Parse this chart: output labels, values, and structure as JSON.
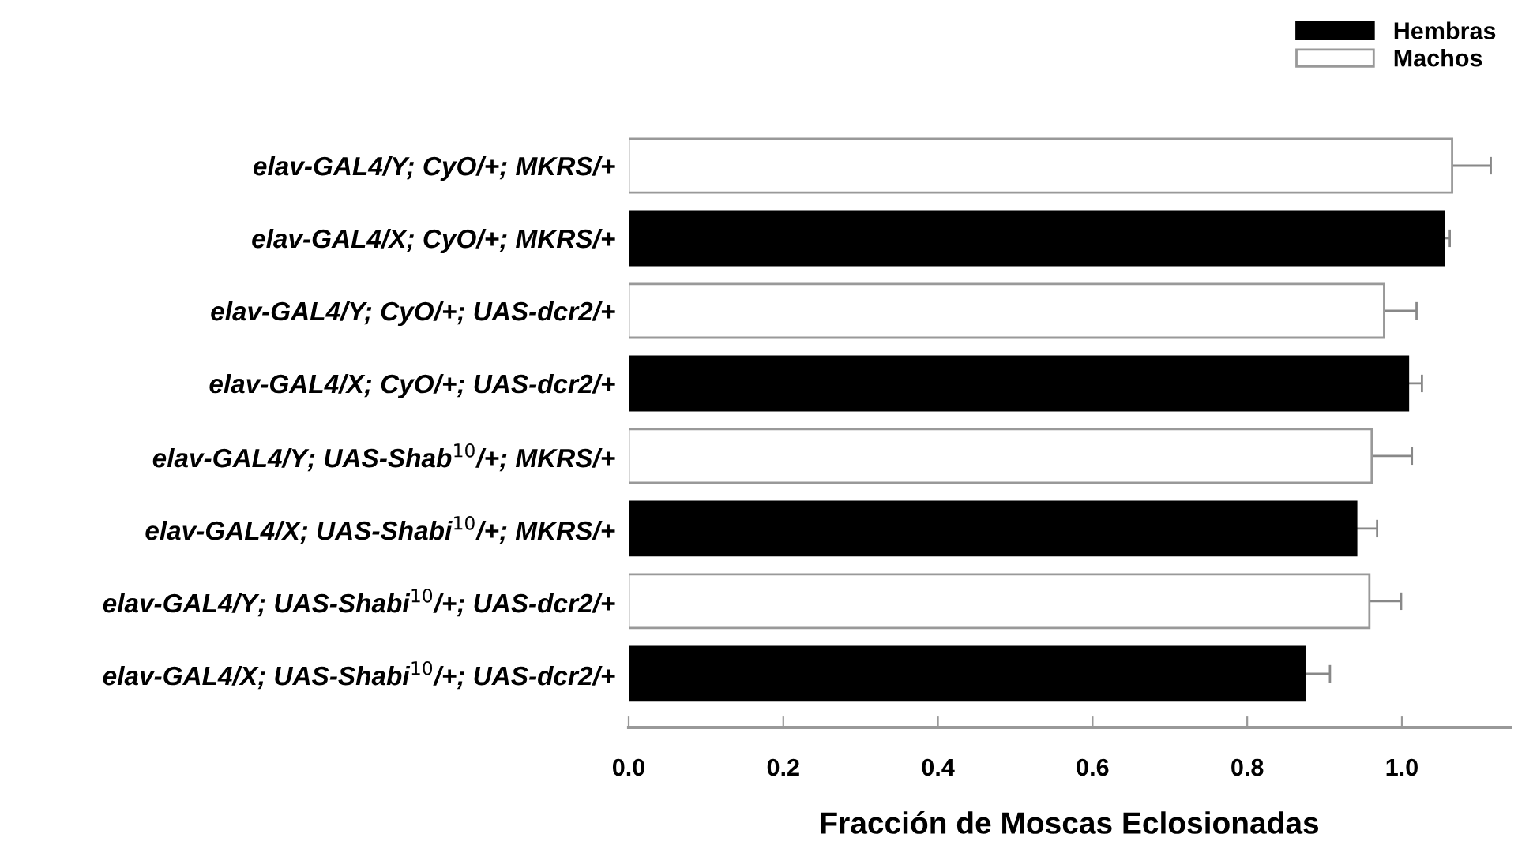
{
  "chart_data": {
    "type": "bar",
    "orientation": "horizontal",
    "xlabel": "Fracción de Moscas Eclosionadas",
    "categories": [
      "elav-GAL4/Y; CyO/+; MKRS/+",
      "elav-GAL4/X; CyO/+; MKRS/+",
      "elav-GAL4/Y; CyO/+; UAS-dcr2/+",
      "elav-GAL4/X; CyO/+; UAS-dcr2/+",
      "elav-GAL4/Y; UAS-Shab$^{10}$/+; MKRS/+",
      "elav-GAL4/X; UAS-Shabi$^{10}$/+; MKRS/+",
      "elav-GAL4/Y; UAS-Shabi$^{10}$/+; UAS-dcr2/+",
      "elav-GAL4/X; UAS-Shabi$^{10}$/+; UAS-dcr2/+"
    ],
    "series": [
      {
        "name": "Hembras",
        "color": "#000000",
        "values": [
          null,
          1.054,
          null,
          1.008,
          null,
          0.941,
          null,
          0.874
        ],
        "errors": [
          null,
          0.008,
          null,
          0.018,
          null,
          0.027,
          null,
          0.033
        ]
      },
      {
        "name": "Machos",
        "color": "#ffffff",
        "values": [
          1.065,
          null,
          0.977,
          null,
          0.961,
          null,
          0.958,
          null
        ],
        "errors": [
          0.05,
          null,
          0.042,
          null,
          0.052,
          null,
          0.041,
          null
        ]
      }
    ],
    "xlim": [
      0,
      1.14
    ],
    "xticks": [
      {
        "value": 0,
        "label": "0.0"
      },
      {
        "value": 0.2,
        "label": "0.2"
      },
      {
        "value": 0.4,
        "label": "0.4"
      },
      {
        "value": 0.6,
        "label": "0.6"
      },
      {
        "value": 0.8,
        "label": "0.8"
      },
      {
        "value": 1.0,
        "label": "1.0"
      }
    ],
    "grid": false,
    "legend": "top right"
  }
}
